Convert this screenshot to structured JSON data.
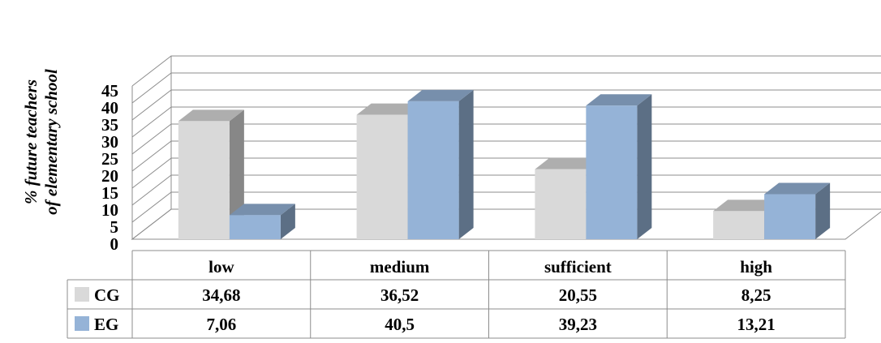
{
  "chart_data": {
    "type": "bar",
    "categories": [
      "low",
      "medium",
      "sufficient",
      "high"
    ],
    "series": [
      {
        "name": "CG",
        "values": [
          34.68,
          36.52,
          20.55,
          8.25
        ],
        "labels": [
          "34,68",
          "36,52",
          "20,55",
          "8,25"
        ],
        "color": "#d9d9d9"
      },
      {
        "name": "EG",
        "values": [
          7.06,
          40.5,
          39.23,
          13.21
        ],
        "labels": [
          "7,06",
          "40,5",
          "39,23",
          "13,21"
        ],
        "color": "#95b3d7"
      }
    ],
    "ylabel": [
      "% future teachers",
      "of elementary school"
    ],
    "ylim": [
      0,
      45
    ],
    "yticks": [
      0,
      5,
      10,
      15,
      20,
      25,
      30,
      35,
      40,
      45
    ],
    "grid": true,
    "style": "3d-clustered-column-with-data-table"
  }
}
